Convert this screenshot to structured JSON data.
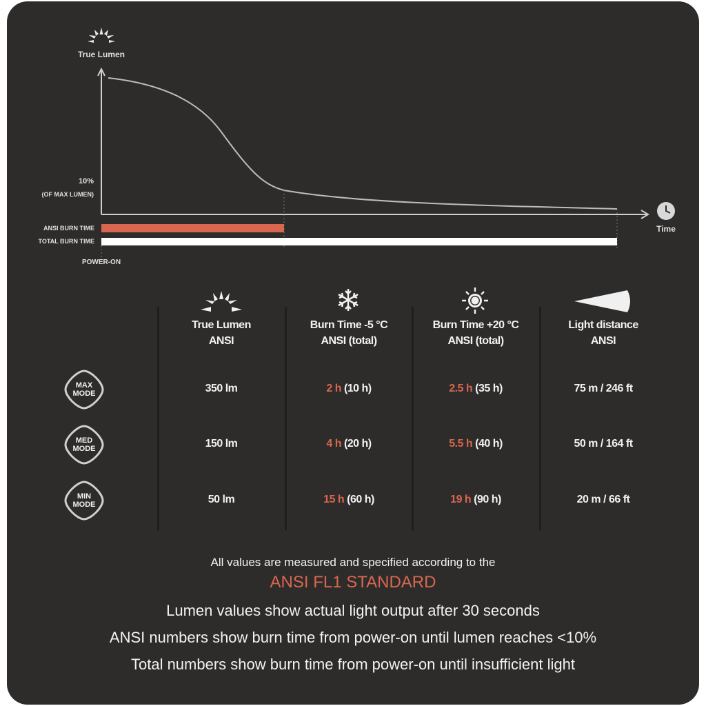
{
  "colors": {
    "background": "#2d2c2b",
    "accent": "#d9674f",
    "bar_total": "#ffffff",
    "curve": "#bdbdbd"
  },
  "graph": {
    "y_axis_label": "True Lumen",
    "y_axis_icon": "sun-rising-icon",
    "threshold_label": "10%",
    "threshold_sublabel": "(OF MAX LUMEN)",
    "x_axis_label": "Time",
    "x_axis_icon": "clock-icon",
    "bars": [
      {
        "label": "ANSI BURN TIME",
        "color": "#d9674f"
      },
      {
        "label": "TOTAL BURN TIME",
        "color": "#ffffff"
      }
    ],
    "origin_label": "POWER-ON"
  },
  "table": {
    "columns": [
      {
        "icon": "sun-rising-icon",
        "line1": "True Lumen",
        "line2": "ANSI"
      },
      {
        "icon": "snowflake-icon",
        "line1": "Burn Time -5 °C",
        "line2": "ANSI  (total)"
      },
      {
        "icon": "sun-icon",
        "line1": "Burn Time +20 °C",
        "line2": "ANSI  (total)"
      },
      {
        "icon": "light-beam-icon",
        "line1": "Light distance",
        "line2": "ANSI"
      }
    ],
    "rows": [
      {
        "mode_line1": "MAX",
        "mode_line2": "MODE",
        "lumen": "350 lm",
        "cold_ansi": "2 h",
        "cold_total": "(10 h)",
        "warm_ansi": "2.5 h",
        "warm_total": "(35 h)",
        "distance": "75 m / 246 ft"
      },
      {
        "mode_line1": "MED",
        "mode_line2": "MODE",
        "lumen": "150 lm",
        "cold_ansi": "4 h",
        "cold_total": "(20 h)",
        "warm_ansi": "5.5 h",
        "warm_total": "(40 h)",
        "distance": "50 m / 164 ft"
      },
      {
        "mode_line1": "MIN",
        "mode_line2": "MODE",
        "lumen": "50 lm",
        "cold_ansi": "15 h",
        "cold_total": "(60 h)",
        "warm_ansi": "19 h",
        "warm_total": "(90 h)",
        "distance": "20 m / 66 ft"
      }
    ]
  },
  "footer": {
    "intro": "All values are measured and specified according to the",
    "standard": "ANSI FL1 STANDARD",
    "notes": [
      "Lumen values show actual light output after 30 seconds",
      "ANSI numbers show burn time from power-on until lumen reaches <10%",
      "Total numbers show burn time from power-on until insufficient light"
    ]
  }
}
